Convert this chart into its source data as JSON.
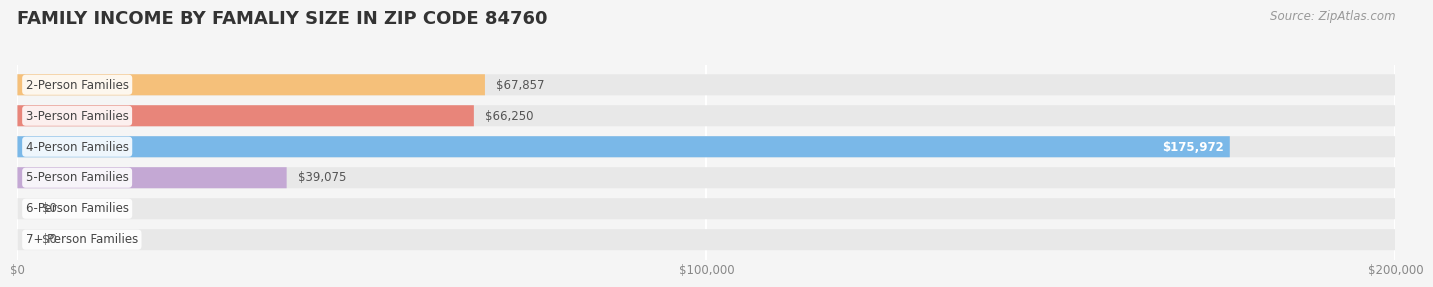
{
  "title": "FAMILY INCOME BY FAMALIY SIZE IN ZIP CODE 84760",
  "source": "Source: ZipAtlas.com",
  "categories": [
    "2-Person Families",
    "3-Person Families",
    "4-Person Families",
    "5-Person Families",
    "6-Person Families",
    "7+ Person Families"
  ],
  "values": [
    67857,
    66250,
    175972,
    39075,
    0,
    0
  ],
  "bar_colors": [
    "#f5c07a",
    "#e8857a",
    "#7ab8e8",
    "#c4a8d4",
    "#6fcfbe",
    "#b0b8e8"
  ],
  "bar_bg_color": "#e8e8e8",
  "value_labels": [
    "$67,857",
    "$66,250",
    "$175,972",
    "$39,075",
    "$0",
    "$0"
  ],
  "xlim": [
    0,
    200000
  ],
  "xticks": [
    0,
    100000,
    200000
  ],
  "xtick_labels": [
    "$0",
    "$100,000",
    "$200,000"
  ],
  "background_color": "#f5f5f5",
  "title_fontsize": 13,
  "label_fontsize": 8.5,
  "value_fontsize": 8.5,
  "source_fontsize": 8.5,
  "bar_height": 0.68
}
